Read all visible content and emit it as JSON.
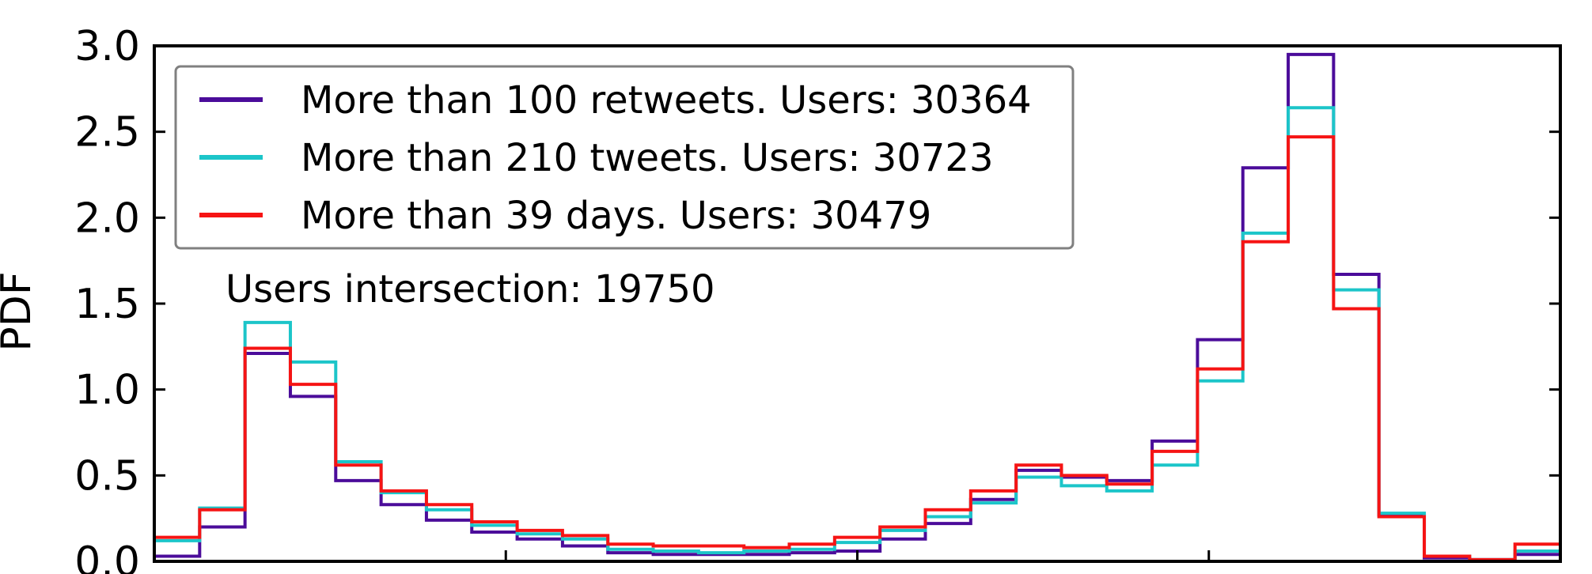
{
  "chart_data": {
    "type": "line",
    "title": "",
    "xlabel": "",
    "ylabel": "PDF",
    "ylim": [
      0,
      3.0
    ],
    "yticks": [
      "0.0",
      "0.5",
      "1.0",
      "1.5",
      "2.0",
      "2.5",
      "3.0"
    ],
    "xticks": [],
    "grid": false,
    "legend_position": "top-left",
    "annotation": "Users intersection: 19750",
    "bins": 31,
    "series": [
      {
        "name": "More than 100 retweets. Users: 30364",
        "color": "#4B0C9A",
        "values": [
          0.03,
          0.2,
          1.21,
          0.96,
          0.47,
          0.33,
          0.24,
          0.17,
          0.13,
          0.09,
          0.05,
          0.04,
          0.04,
          0.04,
          0.05,
          0.06,
          0.13,
          0.22,
          0.36,
          0.53,
          0.49,
          0.47,
          0.7,
          1.29,
          2.29,
          2.95,
          1.67,
          0.27,
          0.02,
          0.01,
          0.04
        ]
      },
      {
        "name": "More than 210 tweets. Users: 30723",
        "color": "#1CC5C9",
        "values": [
          0.12,
          0.31,
          1.39,
          1.16,
          0.58,
          0.4,
          0.3,
          0.21,
          0.16,
          0.13,
          0.07,
          0.06,
          0.05,
          0.06,
          0.07,
          0.11,
          0.18,
          0.26,
          0.34,
          0.49,
          0.44,
          0.41,
          0.56,
          1.05,
          1.91,
          2.64,
          1.58,
          0.28,
          0.03,
          0.01,
          0.06
        ]
      },
      {
        "name": "More than 39 days. Users: 30479",
        "color": "#F61414",
        "values": [
          0.14,
          0.3,
          1.24,
          1.03,
          0.56,
          0.41,
          0.33,
          0.23,
          0.18,
          0.15,
          0.1,
          0.09,
          0.09,
          0.08,
          0.1,
          0.14,
          0.2,
          0.3,
          0.41,
          0.56,
          0.5,
          0.45,
          0.64,
          1.12,
          1.86,
          2.47,
          1.47,
          0.26,
          0.03,
          0.01,
          0.1
        ]
      }
    ]
  }
}
